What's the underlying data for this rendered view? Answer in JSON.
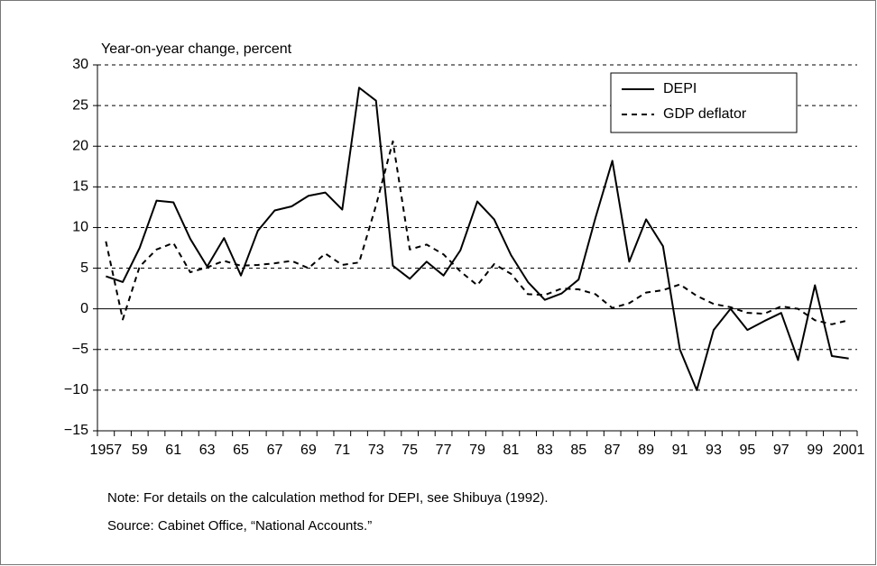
{
  "chart_data": {
    "type": "line",
    "y_axis_label": "Year-on-year change, percent",
    "categories": [
      "1957",
      null,
      "59",
      null,
      "61",
      null,
      "63",
      null,
      "65",
      null,
      "67",
      null,
      "69",
      null,
      "71",
      null,
      "73",
      null,
      "75",
      null,
      "77",
      null,
      "79",
      null,
      "81",
      null,
      "83",
      null,
      "85",
      null,
      "87",
      null,
      "89",
      null,
      "91",
      null,
      "93",
      null,
      "95",
      null,
      "97",
      null,
      "99",
      null,
      "2001"
    ],
    "series": [
      {
        "name": "DEPI",
        "color": "#000000",
        "linestyle": "solid",
        "values": [
          4,
          3.3,
          7.5,
          13.3,
          13.1,
          8.6,
          5.2,
          8.7,
          4.1,
          9.6,
          12.1,
          12.6,
          13.9,
          14.3,
          12.2,
          27.2,
          25.6,
          5.3,
          3.7,
          5.8,
          4.1,
          7.2,
          13.2,
          11.0,
          6.6,
          3.3,
          1.1,
          1.9,
          3.6,
          11.2,
          18.2,
          5.8,
          11.0,
          7.7,
          -5.0,
          -10.0,
          -2.6,
          0.0,
          -2.6,
          -1.5,
          -0.5,
          -6.3,
          2.9,
          -5.8,
          -6.1
        ]
      },
      {
        "name": "GDP deflator",
        "color": "#000000",
        "linestyle": "dashed",
        "values": [
          8.3,
          -1.3,
          5.2,
          7.3,
          8.1,
          4.5,
          5.1,
          5.9,
          5.3,
          5.4,
          5.6,
          5.9,
          5.0,
          6.8,
          5.4,
          5.7,
          12.7,
          20.6,
          7.3,
          7.9,
          6.7,
          4.6,
          2.9,
          5.5,
          4.3,
          1.8,
          1.7,
          2.5,
          2.4,
          1.8,
          0.1,
          0.7,
          2.0,
          2.3,
          3.0,
          1.6,
          0.6,
          0.2,
          -0.5,
          -0.6,
          0.3,
          0.0,
          -1.4,
          -1.9,
          -1.4
        ]
      }
    ],
    "ylim": [
      -15,
      30
    ],
    "yticks": [
      {
        "value": -15,
        "label": "−15"
      },
      {
        "value": -10,
        "label": "−10"
      },
      {
        "value": -5,
        "label": "−5"
      },
      0,
      5,
      10,
      15,
      20,
      25,
      30
    ],
    "grid": true,
    "legend": "upper right",
    "notes": [
      "Note: For details on the calculation method for DEPI, see Shibuya (1992).",
      "Source: Cabinet Office, “National Accounts.”"
    ]
  }
}
